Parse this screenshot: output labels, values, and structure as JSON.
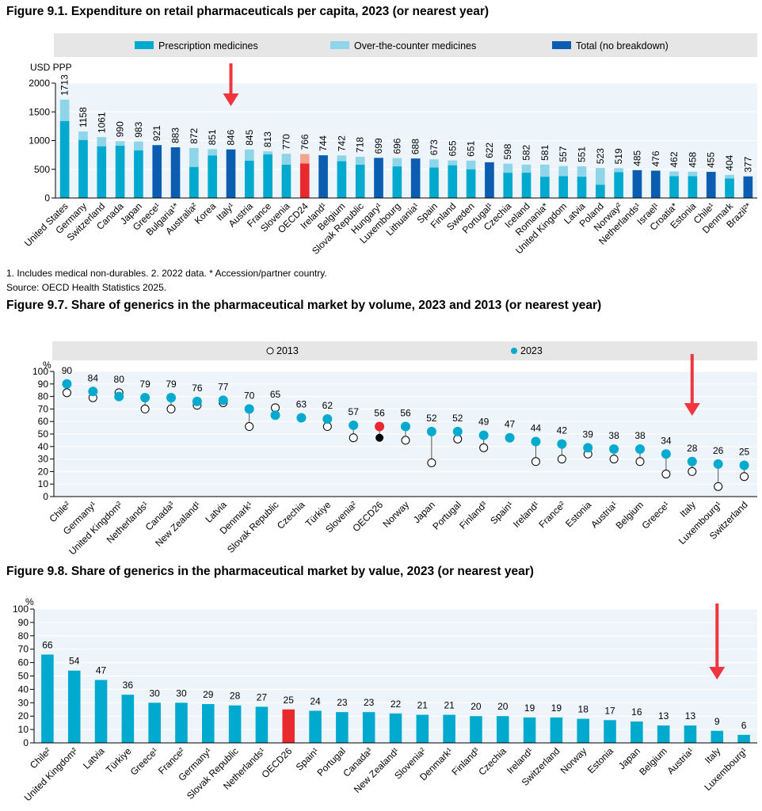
{
  "figures": [
    {
      "title": "Figure 9.1. Expenditure on retail pharmaceuticals per capita, 2023 (or nearest year)",
      "notes": "1. Includes medical non-durables. 2. 2022 data. * Accession/partner country.",
      "source": "Source: OECD Health Statistics 2025."
    },
    {
      "title": "Figure 9.7. Share of generics in the pharmaceutical market by volume, 2023 and 2013 (or nearest year)"
    },
    {
      "title": "Figure 9.8. Share of generics in the pharmaceutical market by value, 2023 (or nearest year)"
    }
  ],
  "colors": {
    "prescription": "#00a9ce",
    "otc": "#8fd5ea",
    "total": "#0a5db0",
    "highlight": "#e8292e",
    "highlight_light": "#f4a592",
    "legend_bg": "#e6e6e6",
    "arrow": "#f0353e"
  },
  "chart_data": [
    {
      "type": "bar",
      "stacked": true,
      "ylabel": "USD PPP",
      "ylim": [
        0,
        2000
      ],
      "yticks": [
        0,
        500,
        1000,
        1500,
        2000
      ],
      "legend": [
        "Prescription medicines",
        "Over-the-counter medicines",
        "Total (no breakdown)"
      ],
      "legend_position": "top",
      "highlight": "OECD24",
      "arrow_at": "Italy¹",
      "categories": [
        "United States",
        "Germany",
        "Switzerland",
        "Canada",
        "Japan",
        "Greece¹",
        "Bulgaria¹*",
        "Australia²",
        "Korea",
        "Italy¹",
        "Austria",
        "France",
        "Slovenia",
        "OECD24",
        "Ireland¹",
        "Belgium",
        "Slovak Republic",
        "Hungary¹",
        "Luxembourg",
        "Lithuania¹",
        "Spain",
        "Finland",
        "Sweden",
        "Portugal¹",
        "Czechia",
        "Iceland",
        "Romania*",
        "United Kingdom",
        "Latvia",
        "Poland",
        "Norway²",
        "Netherlands¹",
        "Israel¹",
        "Croatia*",
        "Estonia",
        "Chile¹",
        "Denmark",
        "Brazil²*"
      ],
      "totals": [
        1713,
        1158,
        1061,
        990,
        983,
        921,
        883,
        872,
        851,
        846,
        845,
        813,
        770,
        766,
        744,
        742,
        718,
        699,
        696,
        688,
        673,
        655,
        651,
        622,
        598,
        582,
        581,
        557,
        551,
        523,
        519,
        485,
        476,
        462,
        458,
        455,
        404,
        377
      ],
      "prescription": [
        1340,
        1010,
        900,
        910,
        830,
        null,
        null,
        540,
        740,
        null,
        650,
        760,
        580,
        600,
        null,
        640,
        580,
        null,
        550,
        null,
        530,
        570,
        500,
        null,
        440,
        440,
        370,
        380,
        370,
        230,
        450,
        null,
        null,
        380,
        380,
        null,
        340,
        null
      ],
      "no_breakdown": [
        false,
        false,
        false,
        false,
        false,
        true,
        true,
        false,
        false,
        true,
        false,
        false,
        false,
        false,
        true,
        false,
        false,
        true,
        false,
        true,
        false,
        false,
        false,
        true,
        false,
        false,
        false,
        false,
        false,
        false,
        false,
        true,
        true,
        false,
        false,
        true,
        false,
        true
      ]
    },
    {
      "type": "scatter",
      "ylabel": "%",
      "ylim": [
        0,
        100
      ],
      "yticks": [
        0,
        10,
        20,
        30,
        40,
        50,
        60,
        70,
        80,
        90,
        100
      ],
      "legend": [
        "2013",
        "2023"
      ],
      "legend_position": "top",
      "highlight": "OECD26",
      "arrow_at": "Italy",
      "categories": [
        "Chile²",
        "Germany¹",
        "United Kingdom²",
        "Netherlands¹",
        "Canada³",
        "New Zealand¹",
        "Latvia",
        "Denmark¹",
        "Slovak Republic",
        "Czechia",
        "Türkiye",
        "Slovenia²",
        "OECD26",
        "Norway",
        "Japan",
        "Portugal",
        "Finland³",
        "Spain¹",
        "Ireland¹",
        "France²",
        "Estonia",
        "Austria¹",
        "Belgium",
        "Greece¹",
        "Italy",
        "Luxembourg¹",
        "Switzerland"
      ],
      "values_2023": [
        90,
        84,
        80,
        79,
        79,
        76,
        77,
        70,
        65,
        63,
        62,
        57,
        56,
        56,
        52,
        52,
        49,
        47,
        44,
        42,
        39,
        38,
        38,
        34,
        28,
        26,
        25
      ],
      "values_2013": [
        83,
        79,
        83,
        70,
        70,
        73,
        75,
        56,
        71,
        null,
        56,
        47,
        47,
        45,
        27,
        46,
        39,
        null,
        28,
        30,
        34,
        30,
        28,
        18,
        20,
        8,
        16
      ]
    },
    {
      "type": "bar",
      "ylabel": "%",
      "ylim": [
        0,
        100
      ],
      "yticks": [
        0,
        10,
        20,
        30,
        40,
        50,
        60,
        70,
        80,
        90,
        100
      ],
      "highlight": "OECD26",
      "arrow_at": "Italy",
      "categories": [
        "Chile²",
        "United Kingdom²",
        "Latvia",
        "Türkiye",
        "Greece¹",
        "France²",
        "Germany¹",
        "Slovak Republic",
        "Netherlands¹",
        "OECD26",
        "Spain¹",
        "Portugal",
        "Canada³",
        "New Zealand¹",
        "Slovenia²",
        "Denmark¹",
        "Finland³",
        "Czechia",
        "Ireland¹",
        "Switzerland",
        "Norway",
        "Estonia",
        "Japan",
        "Belgium",
        "Austria¹",
        "Italy",
        "Luxembourg¹"
      ],
      "values": [
        66,
        54,
        47,
        36,
        30,
        30,
        29,
        28,
        27,
        25,
        24,
        23,
        23,
        22,
        21,
        21,
        20,
        20,
        19,
        19,
        18,
        17,
        16,
        13,
        13,
        9,
        6
      ]
    }
  ]
}
